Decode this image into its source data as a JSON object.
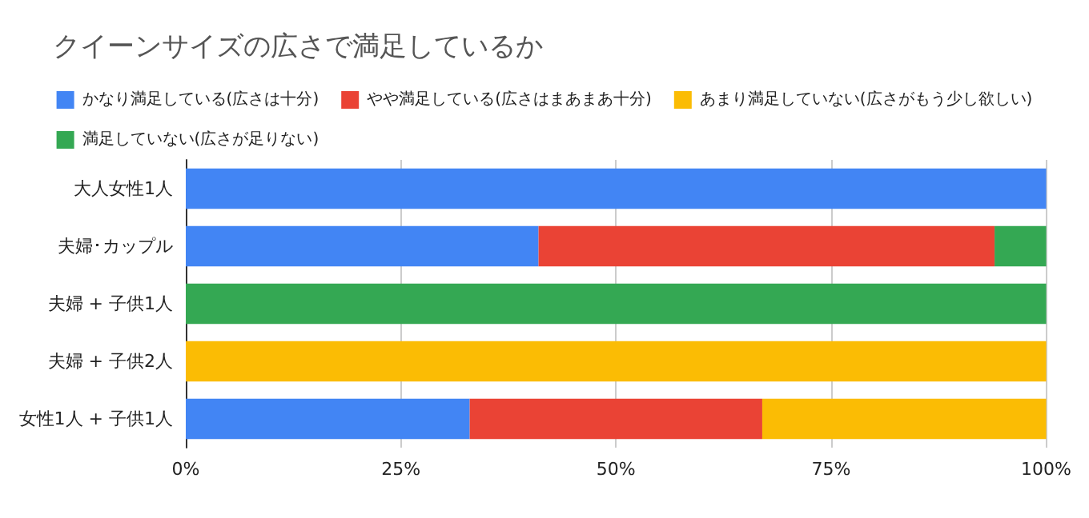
{
  "chart_data": {
    "type": "bar",
    "title": "クイーンサイズの広さで満足しているか",
    "orientation": "horizontal",
    "stacked": true,
    "categories": [
      "大人女性1人",
      "夫婦･カップル",
      "夫婦 + 子供1人",
      "夫婦 + 子供2人",
      "女性1人 + 子供1人"
    ],
    "series": [
      {
        "name": "かなり満足している(広さは十分)",
        "color": "#4285f4",
        "values": [
          100,
          41,
          0,
          0,
          33
        ]
      },
      {
        "name": "やや満足している(広さはまあまあ十分)",
        "color": "#ea4335",
        "values": [
          0,
          53,
          0,
          0,
          34
        ]
      },
      {
        "name": "あまり満足していない(広さがもう少し欲しい)",
        "color": "#fbbc04",
        "values": [
          0,
          0,
          0,
          100,
          33
        ]
      },
      {
        "name": "満足していない(広さが足りない)",
        "color": "#34a853",
        "values": [
          0,
          6,
          100,
          0,
          0
        ]
      }
    ],
    "xlim": [
      0,
      100
    ],
    "xticks": [
      {
        "value": 0,
        "label": "0%"
      },
      {
        "value": 25,
        "label": "25%"
      },
      {
        "value": 50,
        "label": "50%"
      },
      {
        "value": 75,
        "label": "75%"
      },
      {
        "value": 100,
        "label": "100%"
      }
    ],
    "grid": "x",
    "legend": "top"
  }
}
